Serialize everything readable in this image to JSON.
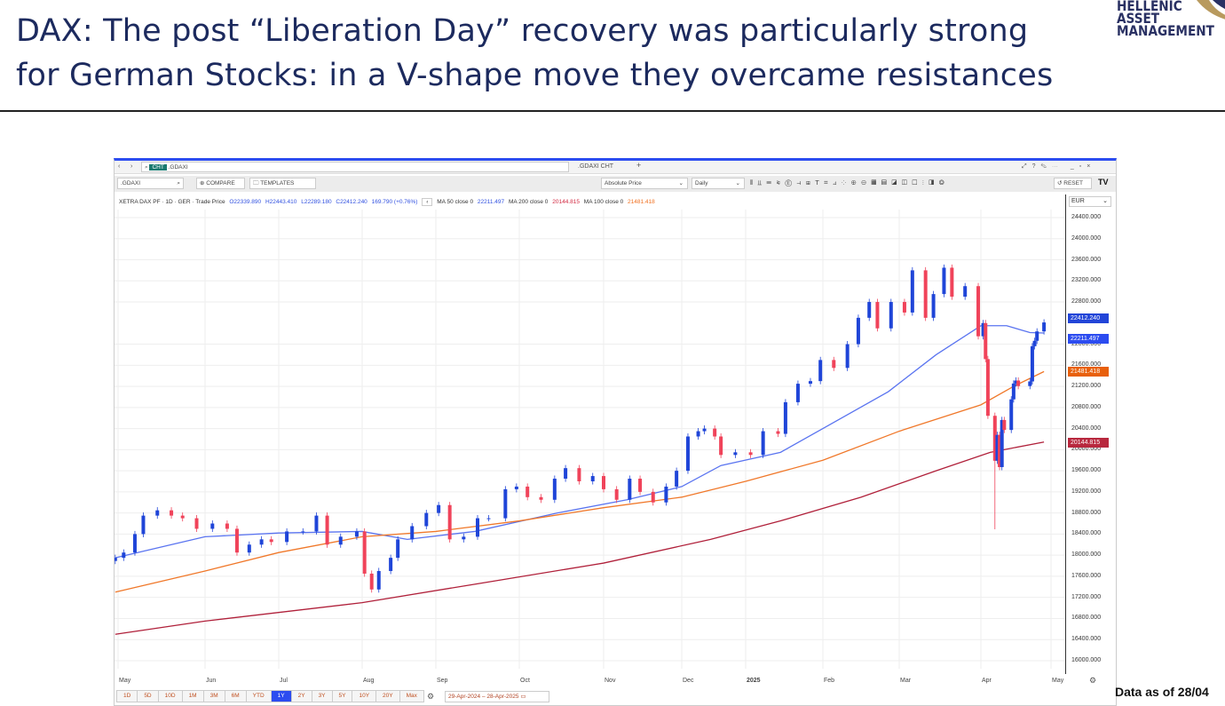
{
  "slide": {
    "title_line1": "DAX: The post “Liberation Day” recovery was particularly strong",
    "title_line2": "for German Stocks: in a V-shape move they overcame resistances",
    "logo": [
      "HELLENIC",
      "ASSET",
      "MANAGEMENT"
    ],
    "footer": "Data as of 28/04"
  },
  "window": {
    "search_tag": "CHT",
    "search_value": ".GDAXI",
    "tab_label": ".GDAXI CHT",
    "tab_add": "+",
    "symbol": ".GDAXI",
    "compare": "COMPARE",
    "templates": "TEMPLATES",
    "price_type": "Absolute Price",
    "interval": "Daily",
    "reset": "RESET",
    "currency": "EUR",
    "tv_logo": "TV"
  },
  "legend": {
    "name": "XETRA DAX PF · 1D · GER · Trade Price",
    "o": "O22339.890",
    "h": "H22443.410",
    "l": "L22289.180",
    "c": "C22412.240",
    "chg": "169.790 (+0.76%)",
    "ma50_label": "MA 50 close 0",
    "ma50": "22211.497",
    "ma200_label": "MA 200 close 0",
    "ma200": "20144.815",
    "ma100_label": "MA 100 close 0",
    "ma100": "21481.418"
  },
  "range_buttons": [
    "1D",
    "5D",
    "10D",
    "1M",
    "3M",
    "6M",
    "YTD",
    "1Y",
    "2Y",
    "3Y",
    "5Y",
    "10Y",
    "20Y",
    "Max"
  ],
  "active_range": "1Y",
  "date_range": "29-Apr-2024  –  28-Apr-2025",
  "colors": {
    "up": "#1f45d8",
    "down": "#f0435a",
    "ma50": "#5a74f0",
    "ma100": "#f0782a",
    "ma200": "#b0203a",
    "accent": "#2c4cf0"
  },
  "chart_data": {
    "type": "candlestick",
    "ylim": [
      15800,
      24600
    ],
    "yticks": [
      24400,
      24000,
      23600,
      23200,
      22800,
      22000,
      21600,
      21200,
      20800,
      20400,
      20000,
      19600,
      19200,
      18800,
      18400,
      18000,
      17600,
      17200,
      16800,
      16400,
      16000
    ],
    "xticks": [
      {
        "label": "May",
        "date": "2024-05-01"
      },
      {
        "label": "Jun",
        "date": "2024-06-01"
      },
      {
        "label": "Jul",
        "date": "2024-07-01"
      },
      {
        "label": "Aug",
        "date": "2024-08-01"
      },
      {
        "label": "Sep",
        "date": "2024-09-01"
      },
      {
        "label": "Oct",
        "date": "2024-10-01"
      },
      {
        "label": "Nov",
        "date": "2024-11-01"
      },
      {
        "label": "Dec",
        "date": "2024-12-01"
      },
      {
        "label": "2025",
        "date": "2025-01-01"
      },
      {
        "label": "Feb",
        "date": "2025-02-01"
      },
      {
        "label": "Mar",
        "date": "2025-03-01"
      },
      {
        "label": "Apr",
        "date": "2025-04-01"
      },
      {
        "label": "May",
        "date": "2025-05-01"
      }
    ],
    "grid": true,
    "closes": [
      [
        "2024-04-30",
        17950
      ],
      [
        "2024-05-03",
        18050
      ],
      [
        "2024-05-07",
        18400
      ],
      [
        "2024-05-10",
        18750
      ],
      [
        "2024-05-15",
        18850
      ],
      [
        "2024-05-20",
        18750
      ],
      [
        "2024-05-24",
        18700
      ],
      [
        "2024-05-29",
        18500
      ],
      [
        "2024-06-04",
        18600
      ],
      [
        "2024-06-10",
        18500
      ],
      [
        "2024-06-14",
        18050
      ],
      [
        "2024-06-19",
        18200
      ],
      [
        "2024-06-24",
        18300
      ],
      [
        "2024-06-28",
        18250
      ],
      [
        "2024-07-04",
        18450
      ],
      [
        "2024-07-10",
        18450
      ],
      [
        "2024-07-15",
        18750
      ],
      [
        "2024-07-19",
        18200
      ],
      [
        "2024-07-24",
        18350
      ],
      [
        "2024-07-30",
        18450
      ],
      [
        "2024-08-02",
        17650
      ],
      [
        "2024-08-05",
        17350
      ],
      [
        "2024-08-08",
        17700
      ],
      [
        "2024-08-13",
        17950
      ],
      [
        "2024-08-16",
        18300
      ],
      [
        "2024-08-22",
        18550
      ],
      [
        "2024-08-28",
        18800
      ],
      [
        "2024-09-02",
        18950
      ],
      [
        "2024-09-06",
        18300
      ],
      [
        "2024-09-11",
        18350
      ],
      [
        "2024-09-16",
        18700
      ],
      [
        "2024-09-20",
        18700
      ],
      [
        "2024-09-26",
        19250
      ],
      [
        "2024-09-30",
        19300
      ],
      [
        "2024-10-04",
        19100
      ],
      [
        "2024-10-09",
        19050
      ],
      [
        "2024-10-14",
        19450
      ],
      [
        "2024-10-18",
        19650
      ],
      [
        "2024-10-23",
        19400
      ],
      [
        "2024-10-28",
        19500
      ],
      [
        "2024-11-01",
        19250
      ],
      [
        "2024-11-06",
        19050
      ],
      [
        "2024-11-11",
        19450
      ],
      [
        "2024-11-15",
        19200
      ],
      [
        "2024-11-20",
        19000
      ],
      [
        "2024-11-25",
        19300
      ],
      [
        "2024-11-29",
        19600
      ],
      [
        "2024-12-04",
        20250
      ],
      [
        "2024-12-09",
        20350
      ],
      [
        "2024-12-12",
        20400
      ],
      [
        "2024-12-17",
        20250
      ],
      [
        "2024-12-20",
        19900
      ],
      [
        "2024-12-27",
        19950
      ],
      [
        "2025-01-03",
        19900
      ],
      [
        "2025-01-08",
        20350
      ],
      [
        "2025-01-14",
        20300
      ],
      [
        "2025-01-17",
        20900
      ],
      [
        "2025-01-22",
        21250
      ],
      [
        "2025-01-27",
        21300
      ],
      [
        "2025-01-31",
        21700
      ],
      [
        "2025-02-05",
        21550
      ],
      [
        "2025-02-10",
        22000
      ],
      [
        "2025-02-14",
        22500
      ],
      [
        "2025-02-18",
        22800
      ],
      [
        "2025-02-21",
        22300
      ],
      [
        "2025-02-26",
        22800
      ],
      [
        "2025-03-03",
        22600
      ],
      [
        "2025-03-06",
        23400
      ],
      [
        "2025-03-11",
        22500
      ],
      [
        "2025-03-14",
        22950
      ],
      [
        "2025-03-18",
        23450
      ],
      [
        "2025-03-21",
        22900
      ],
      [
        "2025-03-26",
        23100
      ],
      [
        "2025-03-31",
        22150
      ],
      [
        "2025-04-02",
        22400
      ],
      [
        "2025-04-03",
        21717
      ],
      [
        "2025-04-04",
        20642
      ],
      [
        "2025-04-07",
        19790
      ],
      [
        "2025-04-08",
        20280
      ],
      [
        "2025-04-09",
        19670
      ],
      [
        "2025-04-10",
        20563
      ],
      [
        "2025-04-11",
        20374
      ],
      [
        "2025-04-14",
        20954
      ],
      [
        "2025-04-15",
        21254
      ],
      [
        "2025-04-16",
        21311
      ],
      [
        "2025-04-17",
        21206
      ],
      [
        "2025-04-22",
        21294
      ],
      [
        "2025-04-23",
        21961
      ],
      [
        "2025-04-24",
        22064
      ],
      [
        "2025-04-25",
        22242
      ],
      [
        "2025-04-28",
        22412
      ]
    ],
    "series": [
      {
        "name": "MA 50 close 0",
        "points": [
          [
            "2024-04-30",
            17950
          ],
          [
            "2024-06-01",
            18350
          ],
          [
            "2024-07-01",
            18420
          ],
          [
            "2024-08-01",
            18450
          ],
          [
            "2024-08-20",
            18300
          ],
          [
            "2024-09-15",
            18450
          ],
          [
            "2024-10-15",
            18800
          ],
          [
            "2024-11-10",
            19050
          ],
          [
            "2024-12-01",
            19300
          ],
          [
            "2024-12-20",
            19700
          ],
          [
            "2025-01-15",
            19950
          ],
          [
            "2025-02-01",
            20400
          ],
          [
            "2025-02-25",
            21100
          ],
          [
            "2025-03-15",
            21800
          ],
          [
            "2025-04-01",
            22350
          ],
          [
            "2025-04-12",
            22350
          ],
          [
            "2025-04-22",
            22220
          ],
          [
            "2025-04-28",
            22211
          ]
        ]
      },
      {
        "name": "MA 100 close 0",
        "points": [
          [
            "2024-04-30",
            17300
          ],
          [
            "2024-06-01",
            17700
          ],
          [
            "2024-07-01",
            18050
          ],
          [
            "2024-08-01",
            18350
          ],
          [
            "2024-09-01",
            18450
          ],
          [
            "2024-10-01",
            18650
          ],
          [
            "2024-11-01",
            18900
          ],
          [
            "2024-12-01",
            19100
          ],
          [
            "2025-01-01",
            19400
          ],
          [
            "2025-02-01",
            19800
          ],
          [
            "2025-03-01",
            20350
          ],
          [
            "2025-04-01",
            20850
          ],
          [
            "2025-04-15",
            21200
          ],
          [
            "2025-04-28",
            21481
          ]
        ]
      },
      {
        "name": "MA 200 close 0",
        "points": [
          [
            "2024-04-30",
            16500
          ],
          [
            "2024-06-01",
            16750
          ],
          [
            "2024-08-01",
            17100
          ],
          [
            "2024-09-15",
            17450
          ],
          [
            "2024-11-01",
            17850
          ],
          [
            "2024-12-15",
            18300
          ],
          [
            "2025-01-15",
            18650
          ],
          [
            "2025-02-15",
            19100
          ],
          [
            "2025-03-15",
            19600
          ],
          [
            "2025-04-05",
            19950
          ],
          [
            "2025-04-28",
            20145
          ]
        ]
      }
    ],
    "last_values": {
      "close": 22412.24,
      "ma50": 22211.497,
      "ma100": 21481.418,
      "ma200": 20144.815
    }
  }
}
